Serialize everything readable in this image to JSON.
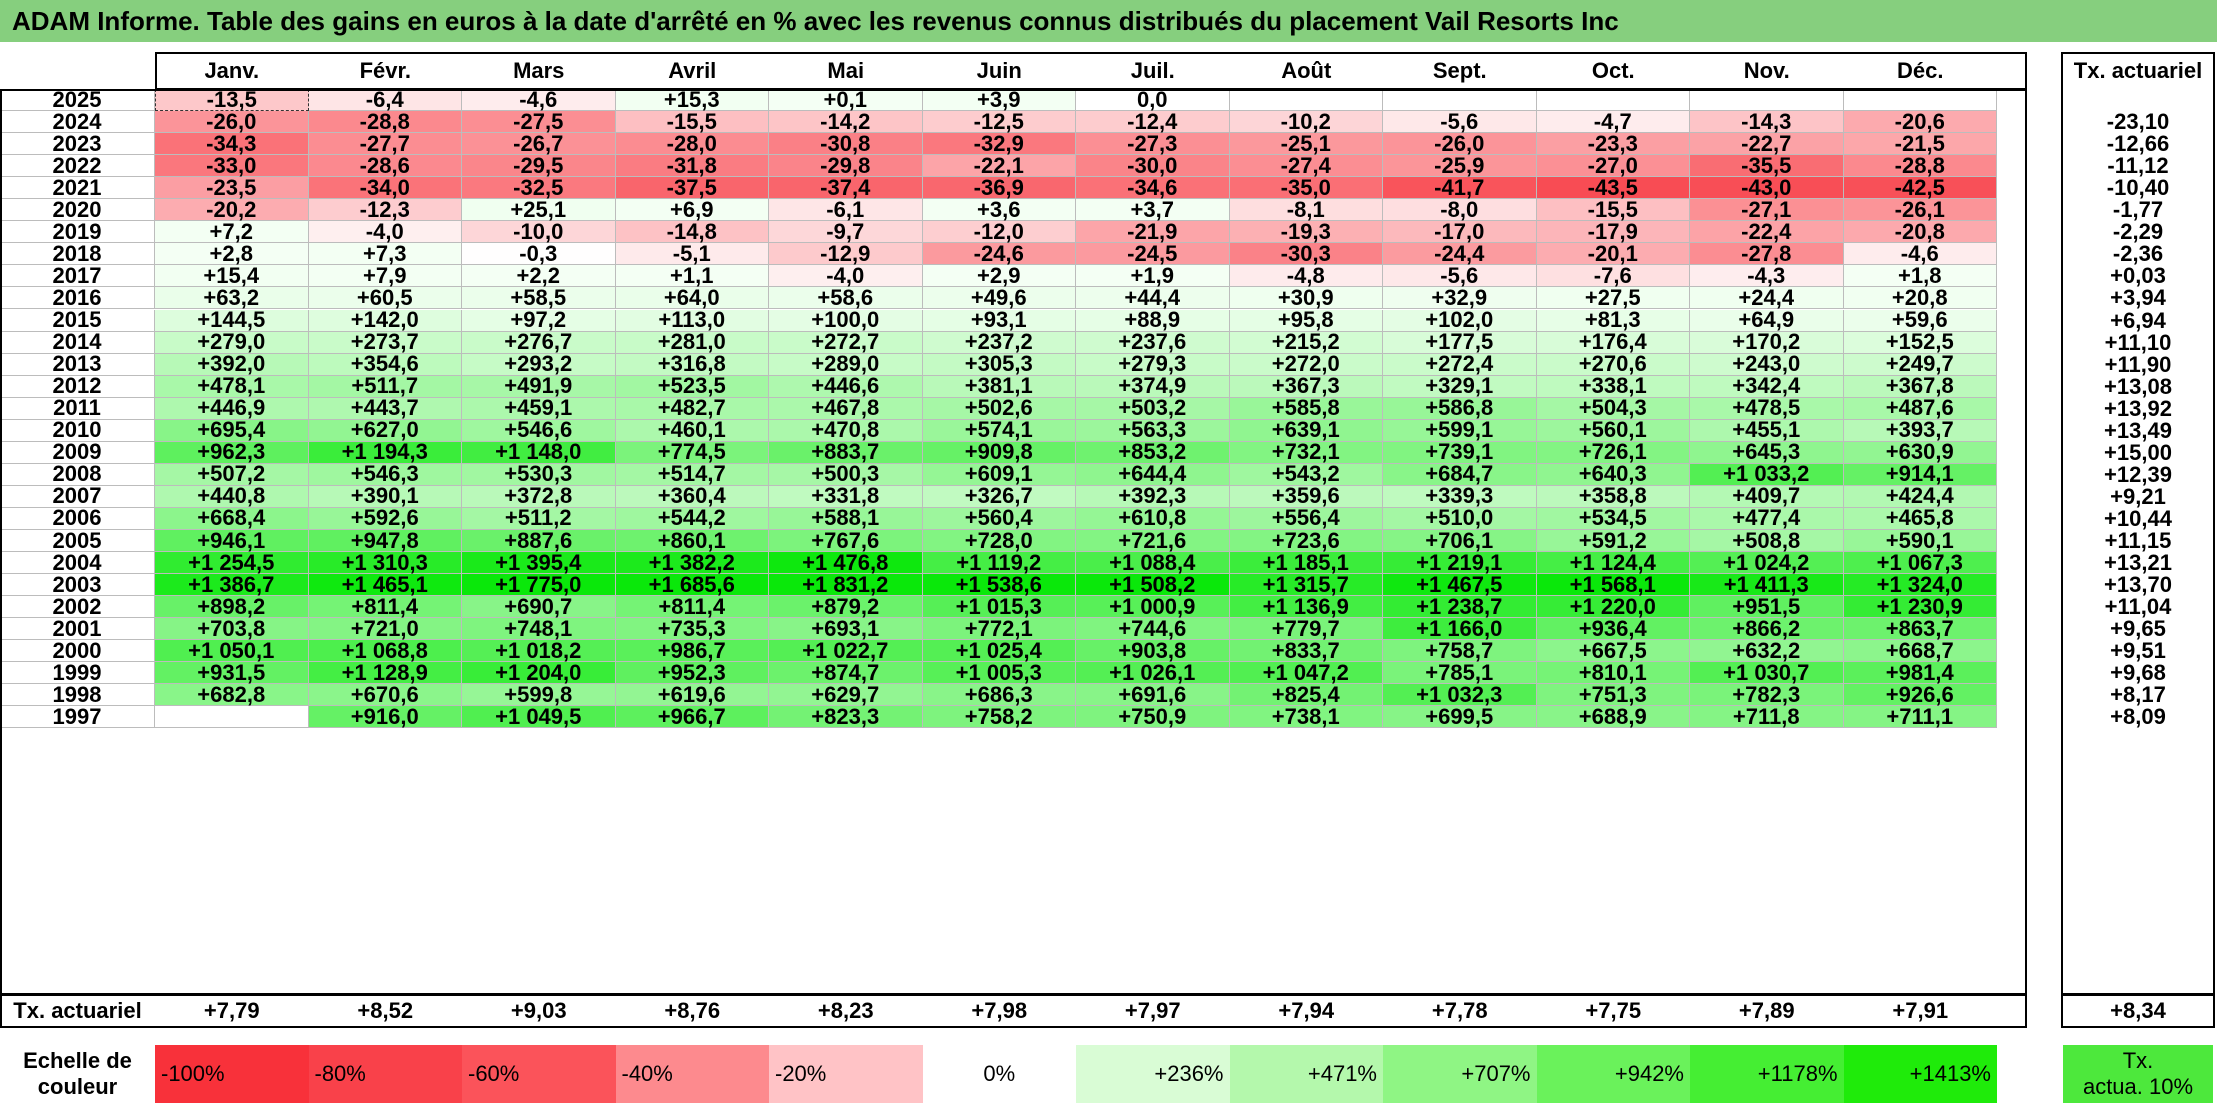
{
  "title": "ADAM Informe. Table des gains en euros à la date d'arrêté en % avec les revenus connus distribués du placement Vail Resorts Inc",
  "months": [
    "Janv.",
    "Févr.",
    "Mars",
    "Avril",
    "Mai",
    "Juin",
    "Juil.",
    "Août",
    "Sept.",
    "Oct.",
    "Nov.",
    "Déc."
  ],
  "rate_header": "Tx. actuariel",
  "rows": [
    {
      "year": "2025",
      "values": [
        "-13,5",
        "-6,4",
        "-4,6",
        "+15,3",
        "+0,1",
        "+3,9",
        "0,0",
        "",
        "",
        "",
        "",
        ""
      ],
      "rate": ""
    },
    {
      "year": "2024",
      "values": [
        "-26,0",
        "-28,8",
        "-27,5",
        "-15,5",
        "-14,2",
        "-12,5",
        "-12,4",
        "-10,2",
        "-5,6",
        "-4,7",
        "-14,3",
        "-20,6"
      ],
      "rate": "-23,10"
    },
    {
      "year": "2023",
      "values": [
        "-34,3",
        "-27,7",
        "-26,7",
        "-28,0",
        "-30,8",
        "-32,9",
        "-27,3",
        "-25,1",
        "-26,0",
        "-23,3",
        "-22,7",
        "-21,5"
      ],
      "rate": "-12,66"
    },
    {
      "year": "2022",
      "values": [
        "-33,0",
        "-28,6",
        "-29,5",
        "-31,8",
        "-29,8",
        "-22,1",
        "-30,0",
        "-27,4",
        "-25,9",
        "-27,0",
        "-35,5",
        "-28,8"
      ],
      "rate": "-11,12"
    },
    {
      "year": "2021",
      "values": [
        "-23,5",
        "-34,0",
        "-32,5",
        "-37,5",
        "-37,4",
        "-36,9",
        "-34,6",
        "-35,0",
        "-41,7",
        "-43,5",
        "-43,0",
        "-42,5"
      ],
      "rate": "-10,40"
    },
    {
      "year": "2020",
      "values": [
        "-20,2",
        "-12,3",
        "+25,1",
        "+6,9",
        "-6,1",
        "+3,6",
        "+3,7",
        "-8,1",
        "-8,0",
        "-15,5",
        "-27,1",
        "-26,1"
      ],
      "rate": "-1,77"
    },
    {
      "year": "2019",
      "values": [
        "+7,2",
        "-4,0",
        "-10,0",
        "-14,8",
        "-9,7",
        "-12,0",
        "-21,9",
        "-19,3",
        "-17,0",
        "-17,9",
        "-22,4",
        "-20,8"
      ],
      "rate": "-2,29"
    },
    {
      "year": "2018",
      "values": [
        "+2,8",
        "+7,3",
        "-0,3",
        "-5,1",
        "-12,9",
        "-24,6",
        "-24,5",
        "-30,3",
        "-24,4",
        "-20,1",
        "-27,8",
        "-4,6"
      ],
      "rate": "-2,36"
    },
    {
      "year": "2017",
      "values": [
        "+15,4",
        "+7,9",
        "+2,2",
        "+1,1",
        "-4,0",
        "+2,9",
        "+1,9",
        "-4,8",
        "-5,6",
        "-7,6",
        "-4,3",
        "+1,8"
      ],
      "rate": "+0,03"
    },
    {
      "year": "2016",
      "values": [
        "+63,2",
        "+60,5",
        "+58,5",
        "+64,0",
        "+58,6",
        "+49,6",
        "+44,4",
        "+30,9",
        "+32,9",
        "+27,5",
        "+24,4",
        "+20,8"
      ],
      "rate": "+3,94"
    },
    {
      "year": "2015",
      "values": [
        "+144,5",
        "+142,0",
        "+97,2",
        "+113,0",
        "+100,0",
        "+93,1",
        "+88,9",
        "+95,8",
        "+102,0",
        "+81,3",
        "+64,9",
        "+59,6"
      ],
      "rate": "+6,94"
    },
    {
      "year": "2014",
      "values": [
        "+279,0",
        "+273,7",
        "+276,7",
        "+281,0",
        "+272,7",
        "+237,2",
        "+237,6",
        "+215,2",
        "+177,5",
        "+176,4",
        "+170,2",
        "+152,5"
      ],
      "rate": "+11,10"
    },
    {
      "year": "2013",
      "values": [
        "+392,0",
        "+354,6",
        "+293,2",
        "+316,8",
        "+289,0",
        "+305,3",
        "+279,3",
        "+272,0",
        "+272,4",
        "+270,6",
        "+243,0",
        "+249,7"
      ],
      "rate": "+11,90"
    },
    {
      "year": "2012",
      "values": [
        "+478,1",
        "+511,7",
        "+491,9",
        "+523,5",
        "+446,6",
        "+381,1",
        "+374,9",
        "+367,3",
        "+329,1",
        "+338,1",
        "+342,4",
        "+367,8"
      ],
      "rate": "+13,08"
    },
    {
      "year": "2011",
      "values": [
        "+446,9",
        "+443,7",
        "+459,1",
        "+482,7",
        "+467,8",
        "+502,6",
        "+503,2",
        "+585,8",
        "+586,8",
        "+504,3",
        "+478,5",
        "+487,6"
      ],
      "rate": "+13,92"
    },
    {
      "year": "2010",
      "values": [
        "+695,4",
        "+627,0",
        "+546,6",
        "+460,1",
        "+470,8",
        "+574,1",
        "+563,3",
        "+639,1",
        "+599,1",
        "+560,1",
        "+455,1",
        "+393,7"
      ],
      "rate": "+13,49"
    },
    {
      "year": "2009",
      "values": [
        "+962,3",
        "+1 194,3",
        "+1 148,0",
        "+774,5",
        "+883,7",
        "+909,8",
        "+853,2",
        "+732,1",
        "+739,1",
        "+726,1",
        "+645,3",
        "+630,9"
      ],
      "rate": "+15,00"
    },
    {
      "year": "2008",
      "values": [
        "+507,2",
        "+546,3",
        "+530,3",
        "+514,7",
        "+500,3",
        "+609,1",
        "+644,4",
        "+543,2",
        "+684,7",
        "+640,3",
        "+1 033,2",
        "+914,1"
      ],
      "rate": "+12,39"
    },
    {
      "year": "2007",
      "values": [
        "+440,8",
        "+390,1",
        "+372,8",
        "+360,4",
        "+331,8",
        "+326,7",
        "+392,3",
        "+359,6",
        "+339,3",
        "+358,8",
        "+409,7",
        "+424,4"
      ],
      "rate": "+9,21"
    },
    {
      "year": "2006",
      "values": [
        "+668,4",
        "+592,6",
        "+511,2",
        "+544,2",
        "+588,1",
        "+560,4",
        "+610,8",
        "+556,4",
        "+510,0",
        "+534,5",
        "+477,4",
        "+465,8"
      ],
      "rate": "+10,44"
    },
    {
      "year": "2005",
      "values": [
        "+946,1",
        "+947,8",
        "+887,6",
        "+860,1",
        "+767,6",
        "+728,0",
        "+721,6",
        "+723,6",
        "+706,1",
        "+591,2",
        "+508,8",
        "+590,1"
      ],
      "rate": "+11,15"
    },
    {
      "year": "2004",
      "values": [
        "+1 254,5",
        "+1 310,3",
        "+1 395,4",
        "+1 382,2",
        "+1 476,8",
        "+1 119,2",
        "+1 088,4",
        "+1 185,1",
        "+1 219,1",
        "+1 124,4",
        "+1 024,2",
        "+1 067,3"
      ],
      "rate": "+13,21"
    },
    {
      "year": "2003",
      "values": [
        "+1 386,7",
        "+1 465,1",
        "+1 775,0",
        "+1 685,6",
        "+1 831,2",
        "+1 538,6",
        "+1 508,2",
        "+1 315,7",
        "+1 467,5",
        "+1 568,1",
        "+1 411,3",
        "+1 324,0"
      ],
      "rate": "+13,70"
    },
    {
      "year": "2002",
      "values": [
        "+898,2",
        "+811,4",
        "+690,7",
        "+811,4",
        "+879,2",
        "+1 015,3",
        "+1 000,9",
        "+1 136,9",
        "+1 238,7",
        "+1 220,0",
        "+951,5",
        "+1 230,9"
      ],
      "rate": "+11,04"
    },
    {
      "year": "2001",
      "values": [
        "+703,8",
        "+721,0",
        "+748,1",
        "+735,3",
        "+693,1",
        "+772,1",
        "+744,6",
        "+779,7",
        "+1 166,0",
        "+936,4",
        "+866,2",
        "+863,7"
      ],
      "rate": "+9,65"
    },
    {
      "year": "2000",
      "values": [
        "+1 050,1",
        "+1 068,8",
        "+1 018,2",
        "+986,7",
        "+1 022,7",
        "+1 025,4",
        "+903,8",
        "+833,7",
        "+758,7",
        "+667,5",
        "+632,2",
        "+668,7"
      ],
      "rate": "+9,51"
    },
    {
      "year": "1999",
      "values": [
        "+931,5",
        "+1 128,9",
        "+1 204,0",
        "+952,3",
        "+874,7",
        "+1 005,3",
        "+1 026,1",
        "+1 047,2",
        "+785,1",
        "+810,1",
        "+1 030,7",
        "+981,4"
      ],
      "rate": "+9,68"
    },
    {
      "year": "1998",
      "values": [
        "+682,8",
        "+670,6",
        "+599,8",
        "+619,6",
        "+629,7",
        "+686,3",
        "+691,6",
        "+825,4",
        "+1 032,3",
        "+751,3",
        "+782,3",
        "+926,6"
      ],
      "rate": "+8,17"
    },
    {
      "year": "1997",
      "values": [
        "",
        "+916,0",
        "+1 049,5",
        "+966,7",
        "+823,3",
        "+758,2",
        "+750,9",
        "+738,1",
        "+699,5",
        "+688,9",
        "+711,8",
        "+711,1"
      ],
      "rate": "+8,09"
    }
  ],
  "footer": {
    "label": "Tx. actuariel",
    "values": [
      "+7,79",
      "+8,52",
      "+9,03",
      "+8,76",
      "+8,23",
      "+7,98",
      "+7,97",
      "+7,94",
      "+7,78",
      "+7,75",
      "+7,89",
      "+7,91"
    ],
    "rate": "+8,34"
  },
  "scale": {
    "label_line1": "Echelle de",
    "label_line2": "couleur",
    "items": [
      {
        "text": "-100%",
        "color": "#f8313a",
        "align": "left"
      },
      {
        "text": "-80%",
        "color": "#f9414a",
        "align": "left"
      },
      {
        "text": "-60%",
        "color": "#fb535a",
        "align": "left"
      },
      {
        "text": "-40%",
        "color": "#fd8a8e",
        "align": "left"
      },
      {
        "text": "-20%",
        "color": "#ffc3c6",
        "align": "left"
      },
      {
        "text": "0%",
        "color": "#ffffff",
        "align": "center"
      },
      {
        "text": "+236%",
        "color": "#d9fcd5",
        "align": "right"
      },
      {
        "text": "+471%",
        "color": "#b4f8ac",
        "align": "right"
      },
      {
        "text": "+707%",
        "color": "#8ff584",
        "align": "right"
      },
      {
        "text": "+942%",
        "color": "#6af25b",
        "align": "right"
      },
      {
        "text": "+1178%",
        "color": "#45ee33",
        "align": "right"
      },
      {
        "text": "+1413%",
        "color": "#1feb0a",
        "align": "right"
      }
    ],
    "rate_swatch_line1": "Tx.",
    "rate_swatch_line2": "actua. 10%",
    "rate_swatch_color": "#4de83c"
  }
}
